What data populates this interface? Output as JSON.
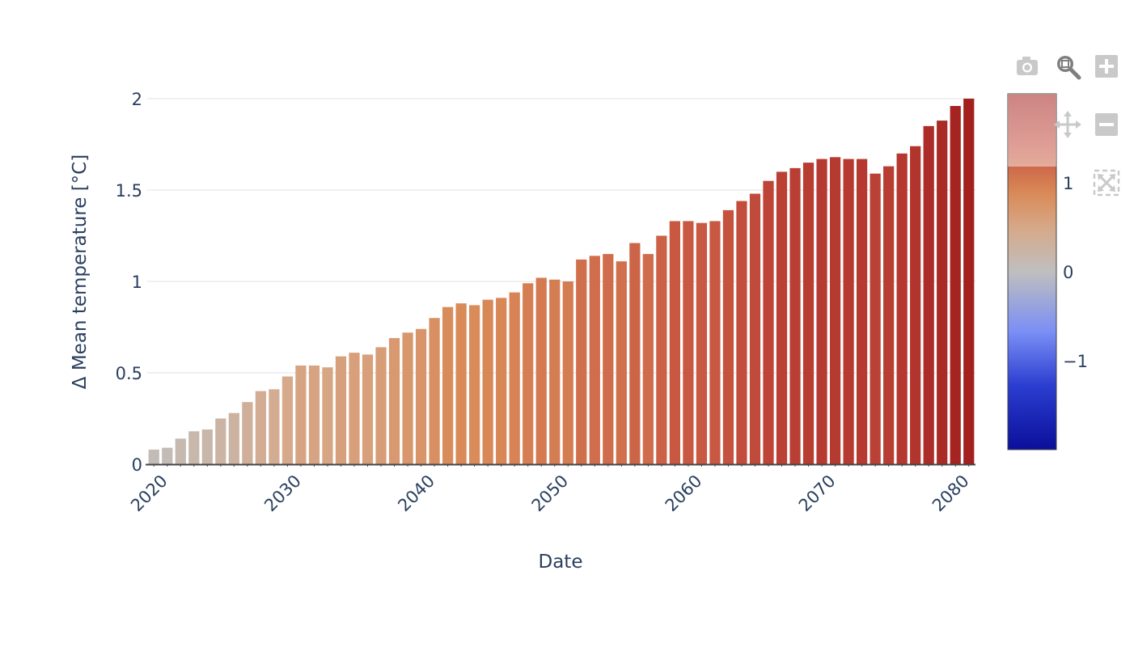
{
  "toolbar": {
    "buttons": [
      {
        "name": "camera-icon",
        "tooltip": "Download plot as a png"
      },
      {
        "name": "zoom-icon",
        "tooltip": "Zoom",
        "active": true
      },
      {
        "name": "zoom-in-icon",
        "tooltip": "Zoom in"
      },
      {
        "name": "pan-icon",
        "tooltip": "Pan"
      },
      {
        "name": "zoom-out-icon",
        "tooltip": "Zoom out"
      },
      {
        "name": "autoscale-icon",
        "tooltip": "Autoscale"
      }
    ],
    "icon_color": "#c9c9c9",
    "active_icon_color": "#7f7f7f"
  },
  "chart_data": {
    "type": "bar",
    "title": "",
    "xlabel": "Date",
    "ylabel": "Δ Mean temperature [°C]",
    "x": [
      2020,
      2021,
      2022,
      2023,
      2024,
      2025,
      2026,
      2027,
      2028,
      2029,
      2030,
      2031,
      2032,
      2033,
      2034,
      2035,
      2036,
      2037,
      2038,
      2039,
      2040,
      2041,
      2042,
      2043,
      2044,
      2045,
      2046,
      2047,
      2048,
      2049,
      2050,
      2051,
      2052,
      2053,
      2054,
      2055,
      2056,
      2057,
      2058,
      2059,
      2060,
      2061,
      2062,
      2063,
      2064,
      2065,
      2066,
      2067,
      2068,
      2069,
      2070,
      2071,
      2072,
      2073,
      2074,
      2075,
      2076,
      2077,
      2078,
      2079,
      2080,
      2081
    ],
    "values": [
      0.08,
      0.09,
      0.14,
      0.18,
      0.19,
      0.25,
      0.28,
      0.34,
      0.4,
      0.41,
      0.48,
      0.54,
      0.54,
      0.53,
      0.59,
      0.61,
      0.6,
      0.64,
      0.69,
      0.72,
      0.74,
      0.8,
      0.86,
      0.88,
      0.87,
      0.9,
      0.91,
      0.94,
      0.99,
      1.02,
      1.01,
      1.0,
      1.12,
      1.14,
      1.15,
      1.11,
      1.21,
      1.15,
      1.25,
      1.33,
      1.33,
      1.32,
      1.33,
      1.39,
      1.44,
      1.48,
      1.55,
      1.6,
      1.62,
      1.65,
      1.67,
      1.68,
      1.67,
      1.67,
      1.59,
      1.63,
      1.7,
      1.74,
      1.85,
      1.88,
      1.96,
      2.0
    ],
    "xticks": [
      2020,
      2030,
      2040,
      2050,
      2060,
      2070,
      2080
    ],
    "yticks": [
      0,
      0.5,
      1,
      1.5,
      2
    ],
    "ytick_labels": [
      "0",
      "0.5",
      "1",
      "1.5",
      "2"
    ],
    "xlim": [
      2019.5,
      2081.5
    ],
    "ylim": [
      0,
      2.1
    ],
    "grid": true,
    "colorscale": "balance-like diverging (dark blue → gray → dark red)",
    "colorbar": {
      "range": [
        -2,
        2
      ],
      "ticks": [
        1,
        0,
        -1
      ],
      "tick_labels": [
        "1",
        "0",
        "−1"
      ]
    }
  }
}
